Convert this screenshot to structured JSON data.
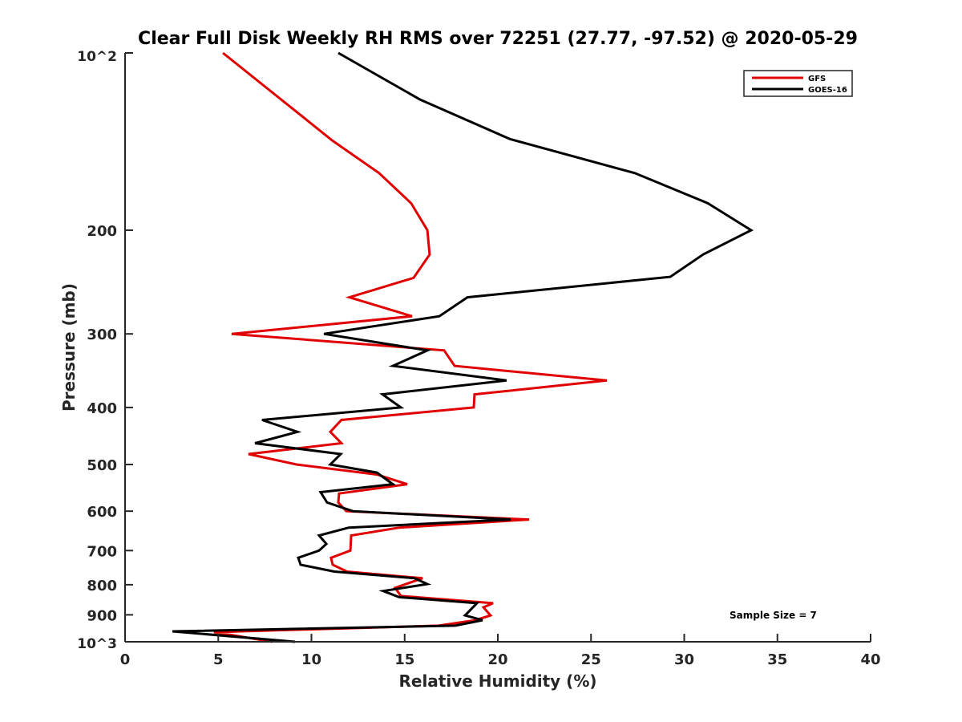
{
  "chart_data": {
    "type": "line",
    "title": "Clear Full Disk Weekly RH RMS over 72251 (27.77, -97.52) @ 2020-05-29",
    "xlabel": "Relative Humidity (%)",
    "ylabel": "Pressure (mb)",
    "xlim": [
      0,
      40
    ],
    "ylim": [
      100,
      1000
    ],
    "yscale": "log",
    "yreversed": true,
    "grid": false,
    "legend_position": "top-right",
    "x_ticks": [
      0,
      5,
      10,
      15,
      20,
      25,
      30,
      35,
      40
    ],
    "y_ticks": [
      100,
      200,
      300,
      400,
      500,
      600,
      700,
      800,
      900,
      1000
    ],
    "y_tick_labels": [
      "10^2",
      "200",
      "300",
      "400",
      "500",
      "600",
      "700",
      "800",
      "900",
      "10^3"
    ],
    "annotation": "Sample Size = 7",
    "series": [
      {
        "name": "GFS",
        "color": "#e00000",
        "points": [
          [
            5.25,
            100
          ],
          [
            11.14,
            141
          ],
          [
            13.63,
            160
          ],
          [
            15.35,
            180
          ],
          [
            16.22,
            200
          ],
          [
            16.34,
            220
          ],
          [
            15.48,
            241
          ],
          [
            12.04,
            260
          ],
          [
            15.4,
            280
          ],
          [
            5.72,
            300
          ],
          [
            17.12,
            320
          ],
          [
            17.68,
            340
          ],
          [
            25.85,
            360
          ],
          [
            18.75,
            380
          ],
          [
            18.71,
            400
          ],
          [
            11.61,
            420
          ],
          [
            11.01,
            440
          ],
          [
            11.61,
            460
          ],
          [
            6.62,
            480
          ],
          [
            9.2,
            500
          ],
          [
            13.5,
            520
          ],
          [
            15.14,
            540
          ],
          [
            11.48,
            560
          ],
          [
            11.44,
            580
          ],
          [
            11.87,
            600
          ],
          [
            21.68,
            620
          ],
          [
            14.71,
            640
          ],
          [
            12.13,
            660
          ],
          [
            12.09,
            700
          ],
          [
            11.05,
            720
          ],
          [
            11.14,
            740
          ],
          [
            11.91,
            760
          ],
          [
            15.96,
            780
          ],
          [
            14.49,
            810
          ],
          [
            14.8,
            836
          ],
          [
            19.74,
            860
          ],
          [
            19.23,
            874
          ],
          [
            19.61,
            902
          ],
          [
            18.8,
            919
          ],
          [
            16.82,
            939
          ],
          [
            4.77,
            963
          ],
          [
            7.91,
            1000
          ]
        ]
      },
      {
        "name": "GOES-16",
        "color": "#000000",
        "points": [
          [
            11.44,
            100
          ],
          [
            15.83,
            120
          ],
          [
            20.65,
            140
          ],
          [
            27.35,
            160
          ],
          [
            31.27,
            180
          ],
          [
            33.59,
            200
          ],
          [
            31.01,
            220
          ],
          [
            29.25,
            240
          ],
          [
            18.37,
            260
          ],
          [
            16.86,
            280
          ],
          [
            10.67,
            300
          ],
          [
            16.22,
            320
          ],
          [
            14.37,
            340
          ],
          [
            20.47,
            360
          ],
          [
            13.81,
            380
          ],
          [
            14.8,
            400
          ],
          [
            7.35,
            420
          ],
          [
            9.25,
            440
          ],
          [
            6.97,
            460
          ],
          [
            11.57,
            480
          ],
          [
            11.01,
            500
          ],
          [
            13.51,
            516
          ],
          [
            14.37,
            540
          ],
          [
            10.49,
            557
          ],
          [
            10.84,
            580
          ],
          [
            12.22,
            600
          ],
          [
            20.69,
            620
          ],
          [
            12.0,
            640
          ],
          [
            10.41,
            660
          ],
          [
            10.8,
            682
          ],
          [
            10.41,
            700
          ],
          [
            9.29,
            720
          ],
          [
            9.42,
            740
          ],
          [
            11.23,
            760
          ],
          [
            15.53,
            780
          ],
          [
            16.22,
            798
          ],
          [
            13.85,
            820
          ],
          [
            14.71,
            840
          ],
          [
            18.88,
            860
          ],
          [
            18.24,
            902
          ],
          [
            19.18,
            919
          ],
          [
            17.72,
            939
          ],
          [
            2.54,
            960
          ],
          [
            9.12,
            1000
          ]
        ]
      }
    ]
  }
}
